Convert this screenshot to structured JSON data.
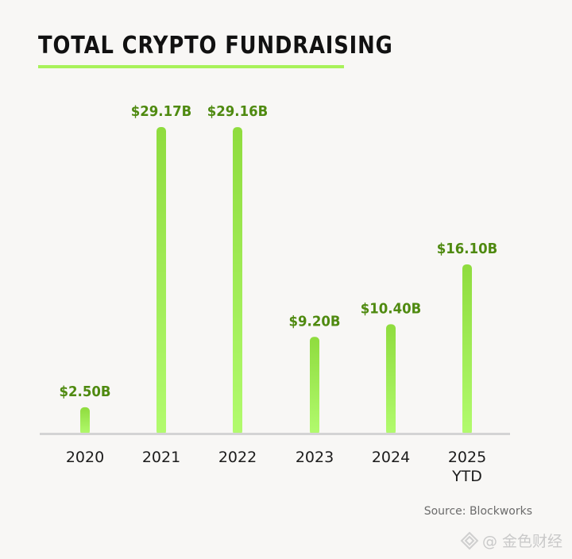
{
  "title": "TOTAL CRYPTO FUNDRAISING",
  "source": "Source: Blockworks",
  "watermark": "@ 金色财经",
  "colors": {
    "background": "#f8f7f5",
    "bar_top": "#8fdc3e",
    "bar_bottom": "#b2fb6e",
    "value_label": "#4f8a10",
    "title_underline": "#a8f25a",
    "baseline": "#d4d4d4"
  },
  "chart_data": {
    "type": "bar",
    "title": "TOTAL CRYPTO FUNDRAISING",
    "categories": [
      "2020",
      "2021",
      "2022",
      "2023",
      "2024",
      "2025 YTD"
    ],
    "category_lines": [
      [
        "2020"
      ],
      [
        "2021"
      ],
      [
        "2022"
      ],
      [
        "2023"
      ],
      [
        "2024"
      ],
      [
        "2025",
        "YTD"
      ]
    ],
    "values": [
      2.5,
      29.17,
      29.16,
      9.2,
      10.4,
      16.1
    ],
    "value_labels": [
      "$2.50B",
      "$29.17B",
      "$29.16B",
      "$9.20B",
      "$10.40B",
      "$16.10B"
    ],
    "unit": "USD billions",
    "ylim": [
      0,
      29.17
    ],
    "grid": false,
    "legend": "none"
  }
}
